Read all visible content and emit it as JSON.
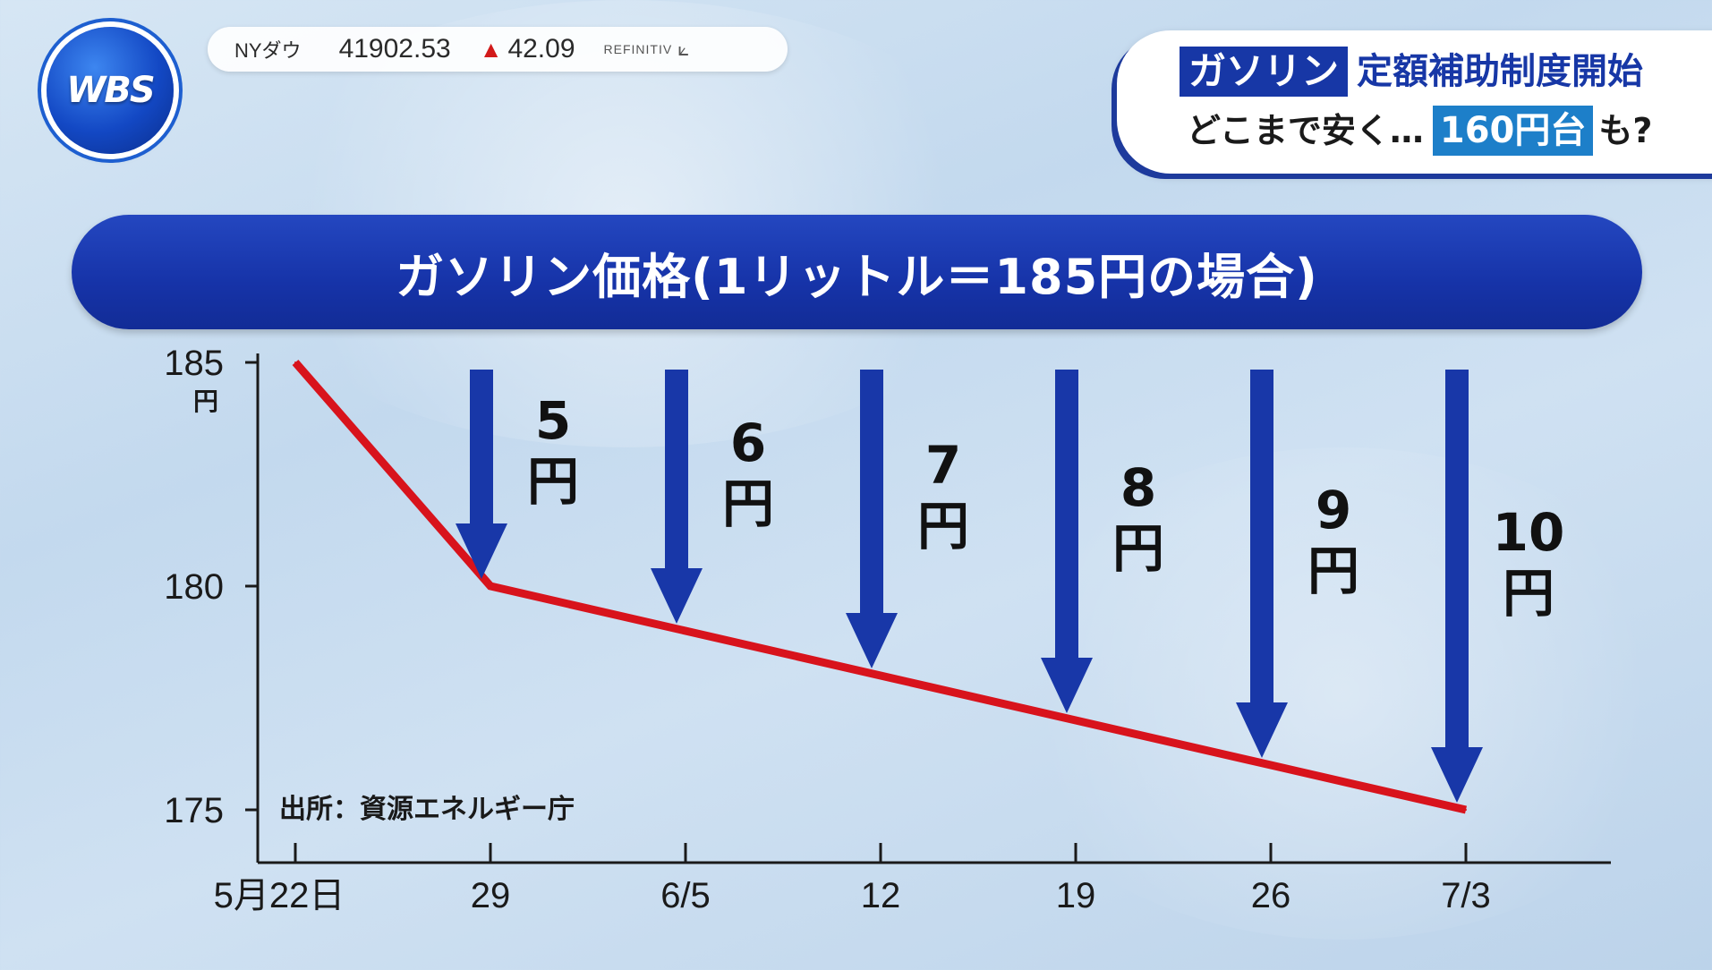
{
  "logo": {
    "text": "WBS"
  },
  "ticker": {
    "name": "NYダウ",
    "value": "41902.53",
    "arrow": "▲",
    "change": "42.09",
    "source": "REFINITIV",
    "source_icon": "⟀"
  },
  "headline": {
    "tag": "ガソリン",
    "line1_text": "定額補助制度開始",
    "line2_text": "どこまで安く…",
    "line2_tag": "160円台",
    "line2_suffix": "も?"
  },
  "chart_data": {
    "type": "line",
    "title": "ガソリン価格(1リットル＝185円の場合)",
    "y_unit": "円",
    "ylim": [
      175,
      185
    ],
    "y_ticks": [
      "185",
      "180",
      "175"
    ],
    "categories": [
      "5月22日",
      "29",
      "6/5",
      "12",
      "19",
      "26",
      "7/3"
    ],
    "values": [
      185,
      180,
      179,
      178,
      177,
      176,
      175
    ],
    "annotations": [
      {
        "at": "29",
        "label_number": "5",
        "label_unit": "円"
      },
      {
        "at": "6/5",
        "label_number": "6",
        "label_unit": "円"
      },
      {
        "at": "12",
        "label_number": "7",
        "label_unit": "円"
      },
      {
        "at": "19",
        "label_number": "8",
        "label_unit": "円"
      },
      {
        "at": "26",
        "label_number": "9",
        "label_unit": "円"
      },
      {
        "at": "7/3",
        "label_number": "10",
        "label_unit": "円"
      }
    ],
    "source_note": "出所：資源エネルギー庁",
    "line_color": "#d8131c",
    "arrow_color": "#1837a8"
  }
}
